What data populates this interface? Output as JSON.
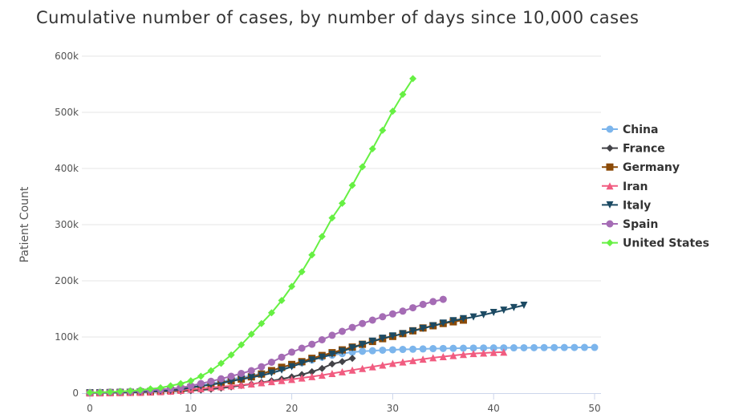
{
  "chart_data": {
    "type": "line",
    "title": "Cumulative number of cases, by number of days since 10,000 cases",
    "xlabel": "",
    "ylabel": "Patient Count",
    "xlim": [
      0,
      50
    ],
    "ylim": [
      0,
      600000
    ],
    "x_ticks": [
      0,
      10,
      20,
      30,
      40,
      50
    ],
    "y_ticks": [
      {
        "value": 0,
        "label": "0"
      },
      {
        "value": 100000,
        "label": "100k"
      },
      {
        "value": 200000,
        "label": "200k"
      },
      {
        "value": 300000,
        "label": "300k"
      },
      {
        "value": 400000,
        "label": "400k"
      },
      {
        "value": 500000,
        "label": "500k"
      },
      {
        "value": 600000,
        "label": "600k"
      }
    ],
    "grid": "horizontal",
    "legend_position": "right",
    "series": [
      {
        "name": "China",
        "color": "#7cb5ec",
        "marker": "circle",
        "values": [
          1000,
          1200,
          1500,
          2000,
          2700,
          3500,
          4500,
          5500,
          7000,
          9000,
          11000,
          14000,
          17000,
          20500,
          24500,
          28000,
          31000,
          35000,
          39500,
          44000,
          49500,
          54000,
          59000,
          64000,
          67500,
          70500,
          73000,
          74500,
          75500,
          76500,
          77200,
          77800,
          78200,
          78700,
          79200,
          79500,
          79800,
          80000,
          80200,
          80400,
          80500,
          80600,
          80700,
          80800,
          80900,
          81000,
          81100,
          81200,
          81300,
          81350,
          81400
        ]
      },
      {
        "name": "France",
        "color": "#434348",
        "marker": "diamond",
        "values": [
          1000,
          1100,
          1300,
          1500,
          1700,
          1900,
          2100,
          2500,
          3000,
          3600,
          4500,
          5500,
          7000,
          9000,
          11000,
          13500,
          16000,
          19000,
          22000,
          25000,
          29000,
          33000,
          38000,
          44000,
          52000,
          56000,
          62000
        ]
      },
      {
        "name": "Germany",
        "color": "#8b4a06",
        "marker": "square",
        "values": [
          500,
          700,
          900,
          1200,
          1500,
          2000,
          2700,
          3500,
          5000,
          7000,
          10000,
          12500,
          15000,
          18500,
          22000,
          25000,
          29000,
          34000,
          40000,
          46000,
          51000,
          56000,
          62000,
          67000,
          72000,
          77000,
          82000,
          87000,
          92000,
          97000,
          101000,
          106000,
          111000,
          116000,
          120000,
          124000,
          127000,
          130000
        ]
      },
      {
        "name": "Iran",
        "color": "#f15c80",
        "marker": "triangle",
        "values": [
          500,
          600,
          800,
          1000,
          1200,
          1500,
          2000,
          2600,
          3500,
          5000,
          7000,
          8000,
          10000,
          11500,
          13000,
          14500,
          16500,
          18500,
          20500,
          22500,
          24500,
          27000,
          29500,
          32000,
          35000,
          38000,
          41000,
          44000,
          47000,
          50000,
          53000,
          55500,
          58000,
          60500,
          63000,
          65000,
          67000,
          69000,
          70500,
          71500,
          72500,
          73000
        ]
      },
      {
        "name": "Italy",
        "color": "#1c4a63",
        "marker": "triangle-down",
        "values": [
          500,
          700,
          900,
          1200,
          1500,
          2000,
          2700,
          3500,
          4600,
          6300,
          10000,
          12500,
          15100,
          17700,
          21200,
          24800,
          27900,
          31500,
          35700,
          41000,
          47000,
          53500,
          59100,
          63900,
          69200,
          74400,
          80600,
          86500,
          92500,
          97700,
          101700,
          105800,
          110600,
          115200,
          119800,
          124600,
          128900,
          132500,
          135600,
          139400,
          143600,
          147600,
          152300,
          156400
        ]
      },
      {
        "name": "Spain",
        "color": "#a56cb5",
        "marker": "circle",
        "values": [
          1000,
          1500,
          2000,
          2500,
          3000,
          4200,
          5200,
          6400,
          7800,
          9900,
          13000,
          17000,
          21000,
          25500,
          30000,
          35000,
          40000,
          47000,
          55000,
          64000,
          73000,
          80000,
          87000,
          95000,
          103000,
          110000,
          117000,
          124000,
          130000,
          136000,
          141000,
          146000,
          152000,
          158000,
          163000,
          167000
        ]
      },
      {
        "name": "United States",
        "color": "#66f043",
        "marker": "diamond",
        "values": [
          1000,
          1500,
          2000,
          3000,
          4000,
          5500,
          7500,
          9500,
          13000,
          17000,
          22000,
          30000,
          40000,
          53000,
          68000,
          86000,
          105000,
          124000,
          143000,
          165000,
          190000,
          216000,
          246000,
          279000,
          312000,
          338000,
          370000,
          403000,
          435000,
          468000,
          502000,
          532000,
          560000
        ]
      }
    ]
  }
}
